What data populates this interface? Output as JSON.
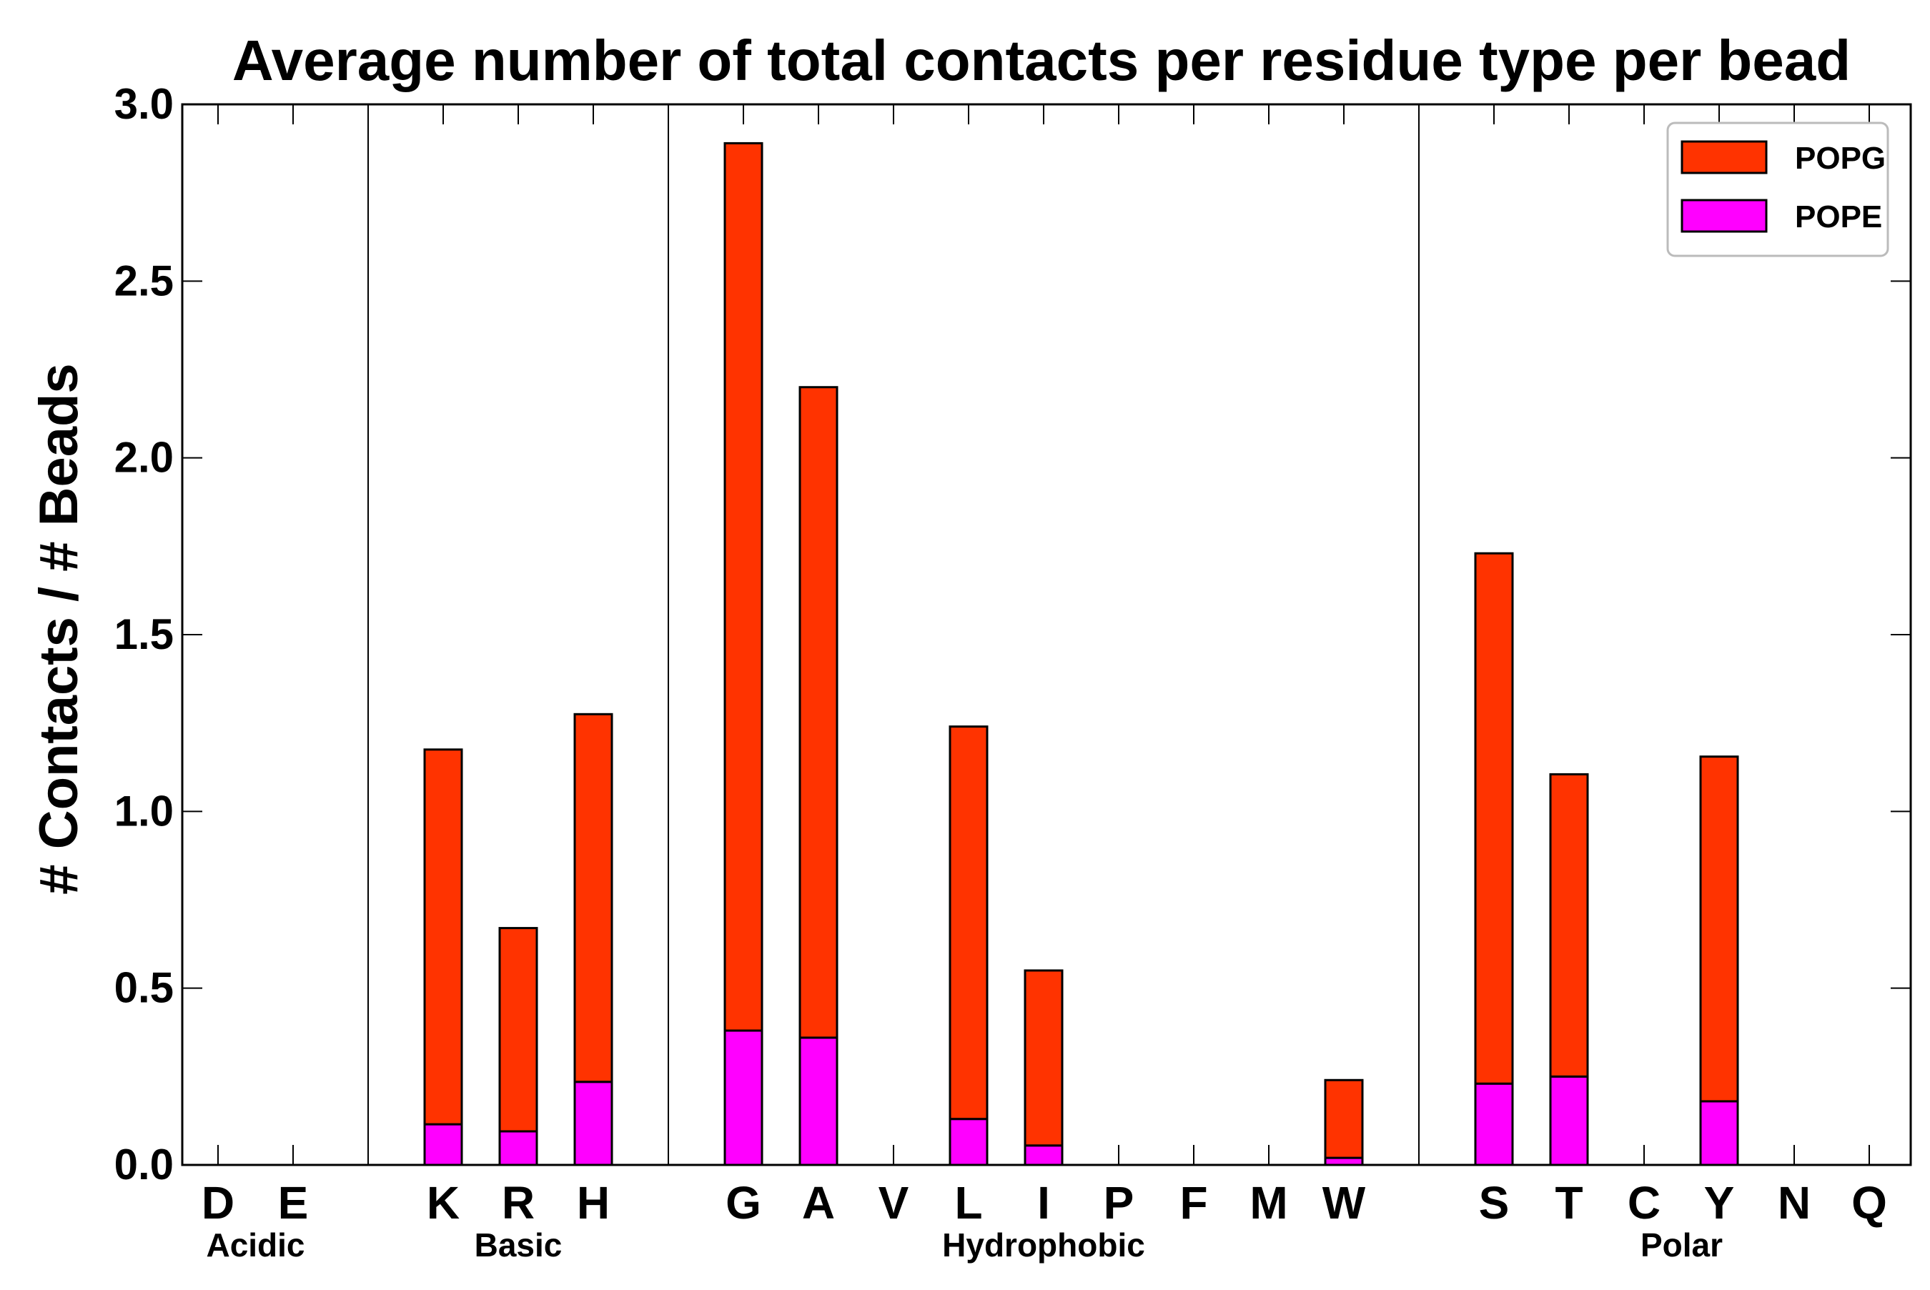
{
  "chart_data": {
    "type": "bar",
    "stacked": true,
    "title": "Average number of total contacts per residue type per bead",
    "xlabel": "",
    "ylabel": "# Contacts / # Beads",
    "ylim": [
      0,
      3.0
    ],
    "yticks": [
      "0.0",
      "0.5",
      "1.0",
      "1.5",
      "2.0",
      "2.5",
      "3.0"
    ],
    "grid": false,
    "legend_position": "top-right",
    "categories": [
      "D",
      "E",
      "K",
      "R",
      "H",
      "G",
      "A",
      "V",
      "L",
      "I",
      "P",
      "F",
      "M",
      "W",
      "S",
      "T",
      "C",
      "Y",
      "N",
      "Q"
    ],
    "groups": [
      {
        "name": "Acidic",
        "members": [
          "D",
          "E"
        ]
      },
      {
        "name": "Basic",
        "members": [
          "K",
          "R",
          "H"
        ]
      },
      {
        "name": "Hydrophobic",
        "members": [
          "G",
          "A",
          "V",
          "L",
          "I",
          "P",
          "F",
          "M",
          "W"
        ]
      },
      {
        "name": "Polar",
        "members": [
          "S",
          "T",
          "C",
          "Y",
          "N",
          "Q"
        ]
      }
    ],
    "series": [
      {
        "name": "POPG",
        "color": "#ff3300",
        "values": [
          0,
          0,
          1.06,
          0.575,
          1.04,
          2.51,
          1.84,
          0,
          1.11,
          0.495,
          0,
          0,
          0,
          0.22,
          1.5,
          0.855,
          0,
          0.975,
          0,
          0
        ]
      },
      {
        "name": "POPE",
        "color": "#ff00ff",
        "values": [
          0,
          0,
          0.115,
          0.095,
          0.235,
          0.38,
          0.36,
          0,
          0.13,
          0.055,
          0,
          0,
          0,
          0.02,
          0.23,
          0.25,
          0,
          0.18,
          0,
          0
        ]
      }
    ]
  }
}
